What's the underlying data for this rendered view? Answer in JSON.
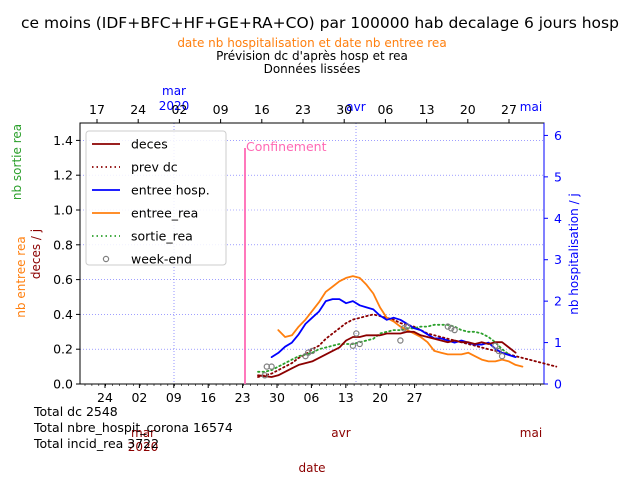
{
  "chart_data": {
    "type": "line",
    "title": "ce moins (IDF+BFC+HF+GE+RA+CO) par 100000 hab decalage 6 jours hosp",
    "subtitle_top": "date nb hospitalisation et date nb entree rea",
    "subtitle_1": "Prévision dc d'après hosp et rea",
    "subtitle_2": "Données lissées",
    "xlabel": "date",
    "ylabel_left_1": "nb sortie rea",
    "ylabel_left_2": "nb entree rea",
    "ylabel_left_3": "deces / j",
    "ylabel_right": "nb hospitalisation / j",
    "ylim_left": [
      0,
      1.5
    ],
    "ylim_right": [
      0,
      6.3
    ],
    "yticks_left": [
      "0.0",
      "0.2",
      "0.4",
      "0.6",
      "0.8",
      "1.0",
      "1.2",
      "1.4"
    ],
    "yticks_right": [
      "0",
      "1",
      "2",
      "3",
      "4",
      "5",
      "6"
    ],
    "x_top_ticks": [
      "17",
      "24",
      "02",
      "09",
      "16",
      "23",
      "30",
      "06",
      "13",
      "20",
      "27"
    ],
    "x_top_months": [
      {
        "label": "mar\n2020"
      },
      {
        "label": "avr"
      },
      {
        "label": "mai"
      }
    ],
    "x_bottom_ticks": [
      "24",
      "02",
      "09",
      "16",
      "23",
      "30",
      "06",
      "13",
      "20",
      "27"
    ],
    "x_bottom_months": [
      {
        "label": "mar\n2020"
      },
      {
        "label": "avr"
      },
      {
        "label": "mai"
      }
    ],
    "annotation": "Confinement",
    "legend": [
      {
        "label": "deces",
        "color": "#8b0000",
        "style": "solid"
      },
      {
        "label": "prev dc",
        "color": "#8b0000",
        "style": "dotted"
      },
      {
        "label": "entree hosp.",
        "color": "#0000ff",
        "style": "solid"
      },
      {
        "label": "entree_rea",
        "color": "#ff7f0e",
        "style": "solid"
      },
      {
        "label": "sortie_rea",
        "color": "#2ca02c",
        "style": "dotted"
      },
      {
        "label": "week-end",
        "color": "#808080",
        "style": "marker"
      }
    ],
    "totals": [
      "Total dc 2548",
      "Total nbre_hospit_corona 16574",
      "Total incid_rea 3722"
    ],
    "series": [
      {
        "name": "deces",
        "axis": "left",
        "color": "#8b0000",
        "x": [
          0,
          1,
          2,
          3,
          4,
          5,
          6,
          7,
          8,
          9,
          10,
          11,
          12,
          13,
          14,
          15,
          16,
          17,
          18,
          19,
          20,
          21,
          22,
          23,
          24,
          25,
          26,
          27,
          28,
          29,
          30,
          31,
          32,
          33,
          34,
          35,
          36,
          37,
          38
        ],
        "values": [
          0.05,
          0.045,
          0.04,
          0.05,
          0.07,
          0.09,
          0.11,
          0.12,
          0.13,
          0.15,
          0.17,
          0.19,
          0.21,
          0.25,
          0.27,
          0.27,
          0.28,
          0.28,
          0.28,
          0.29,
          0.29,
          0.29,
          0.3,
          0.3,
          0.28,
          0.27,
          0.26,
          0.25,
          0.24,
          0.25,
          0.24,
          0.24,
          0.23,
          0.24,
          0.23,
          0.24,
          0.24,
          0.21,
          0.18
        ]
      },
      {
        "name": "prev dc",
        "axis": "left",
        "color": "#8b0000",
        "x": [
          0,
          1,
          2,
          3,
          4,
          5,
          6,
          7,
          8,
          9,
          10,
          11,
          12,
          13,
          14,
          15,
          16,
          17,
          18,
          19,
          20,
          21,
          22,
          23,
          24,
          25,
          26,
          27,
          28,
          29,
          30,
          31,
          32,
          33,
          34,
          35,
          36,
          37,
          38,
          39,
          40,
          41,
          42,
          43,
          44
        ],
        "values": [
          0.04,
          0.05,
          0.06,
          0.08,
          0.1,
          0.12,
          0.15,
          0.17,
          0.2,
          0.22,
          0.26,
          0.29,
          0.32,
          0.35,
          0.37,
          0.38,
          0.39,
          0.4,
          0.39,
          0.38,
          0.37,
          0.35,
          0.34,
          0.33,
          0.31,
          0.29,
          0.28,
          0.27,
          0.26,
          0.25,
          0.24,
          0.23,
          0.22,
          0.21,
          0.2,
          0.19,
          0.18,
          0.17,
          0.16,
          0.15,
          0.14,
          0.13,
          0.12,
          0.11,
          0.1
        ]
      },
      {
        "name": "entree hosp.",
        "axis": "right",
        "x": [
          2,
          3,
          4,
          5,
          6,
          7,
          8,
          9,
          10,
          11,
          12,
          13,
          14,
          15,
          16,
          17,
          18,
          19,
          20,
          21,
          22,
          23,
          24,
          25,
          26,
          27,
          28,
          29,
          30,
          31,
          32,
          33,
          34,
          35,
          36,
          37,
          38
        ],
        "values": [
          0.65,
          0.75,
          0.9,
          1.0,
          1.2,
          1.45,
          1.6,
          1.75,
          2.0,
          2.05,
          2.05,
          1.95,
          2.0,
          1.9,
          1.85,
          1.8,
          1.65,
          1.55,
          1.6,
          1.55,
          1.45,
          1.35,
          1.3,
          1.2,
          1.1,
          1.1,
          1.05,
          1.0,
          1.05,
          1.0,
          0.95,
          0.95,
          1.0,
          0.85,
          0.75,
          0.7,
          0.65
        ]
      },
      {
        "name": "entree_rea",
        "axis": "left",
        "x": [
          3,
          4,
          5,
          6,
          7,
          8,
          9,
          10,
          11,
          12,
          13,
          14,
          15,
          16,
          17,
          18,
          19,
          20,
          21,
          22,
          23,
          24,
          25,
          26,
          27,
          28,
          29,
          30,
          31,
          32,
          33,
          34,
          35,
          36,
          37,
          38,
          39
        ],
        "values": [
          0.31,
          0.27,
          0.28,
          0.33,
          0.37,
          0.42,
          0.47,
          0.53,
          0.56,
          0.59,
          0.61,
          0.62,
          0.61,
          0.57,
          0.52,
          0.44,
          0.38,
          0.36,
          0.33,
          0.31,
          0.29,
          0.27,
          0.24,
          0.19,
          0.18,
          0.17,
          0.17,
          0.17,
          0.18,
          0.16,
          0.14,
          0.13,
          0.13,
          0.14,
          0.13,
          0.11,
          0.1
        ]
      },
      {
        "name": "sortie_rea",
        "axis": "left",
        "x": [
          0,
          1,
          2,
          3,
          4,
          5,
          6,
          7,
          8,
          9,
          10,
          11,
          12,
          13,
          14,
          15,
          16,
          17,
          18,
          19,
          20,
          21,
          22,
          23,
          24,
          25,
          26,
          27,
          28,
          29,
          30,
          31,
          32,
          33,
          34,
          35,
          36,
          37
        ],
        "values": [
          0.07,
          0.07,
          0.08,
          0.1,
          0.12,
          0.14,
          0.16,
          0.17,
          0.18,
          0.2,
          0.21,
          0.22,
          0.23,
          0.23,
          0.23,
          0.24,
          0.25,
          0.26,
          0.29,
          0.3,
          0.31,
          0.31,
          0.32,
          0.32,
          0.33,
          0.33,
          0.34,
          0.34,
          0.34,
          0.33,
          0.31,
          0.3,
          0.3,
          0.29,
          0.27,
          0.24,
          0.2,
          0.17
        ]
      },
      {
        "name": "week-end",
        "axis": "left",
        "points": [
          [
            1,
            0.05
          ],
          [
            1.3,
            0.1
          ],
          [
            2,
            0.1
          ],
          [
            7,
            0.16
          ],
          [
            7.4,
            0.18
          ],
          [
            8,
            0.19
          ],
          [
            14,
            0.22
          ],
          [
            14.5,
            0.29
          ],
          [
            15,
            0.23
          ],
          [
            21,
            0.25
          ],
          [
            21.5,
            0.32
          ],
          [
            22,
            0.33
          ],
          [
            28,
            0.33
          ],
          [
            28.5,
            0.32
          ],
          [
            29,
            0.31
          ],
          [
            35,
            0.22
          ],
          [
            35.5,
            0.19
          ],
          [
            36,
            0.16
          ]
        ]
      }
    ]
  }
}
